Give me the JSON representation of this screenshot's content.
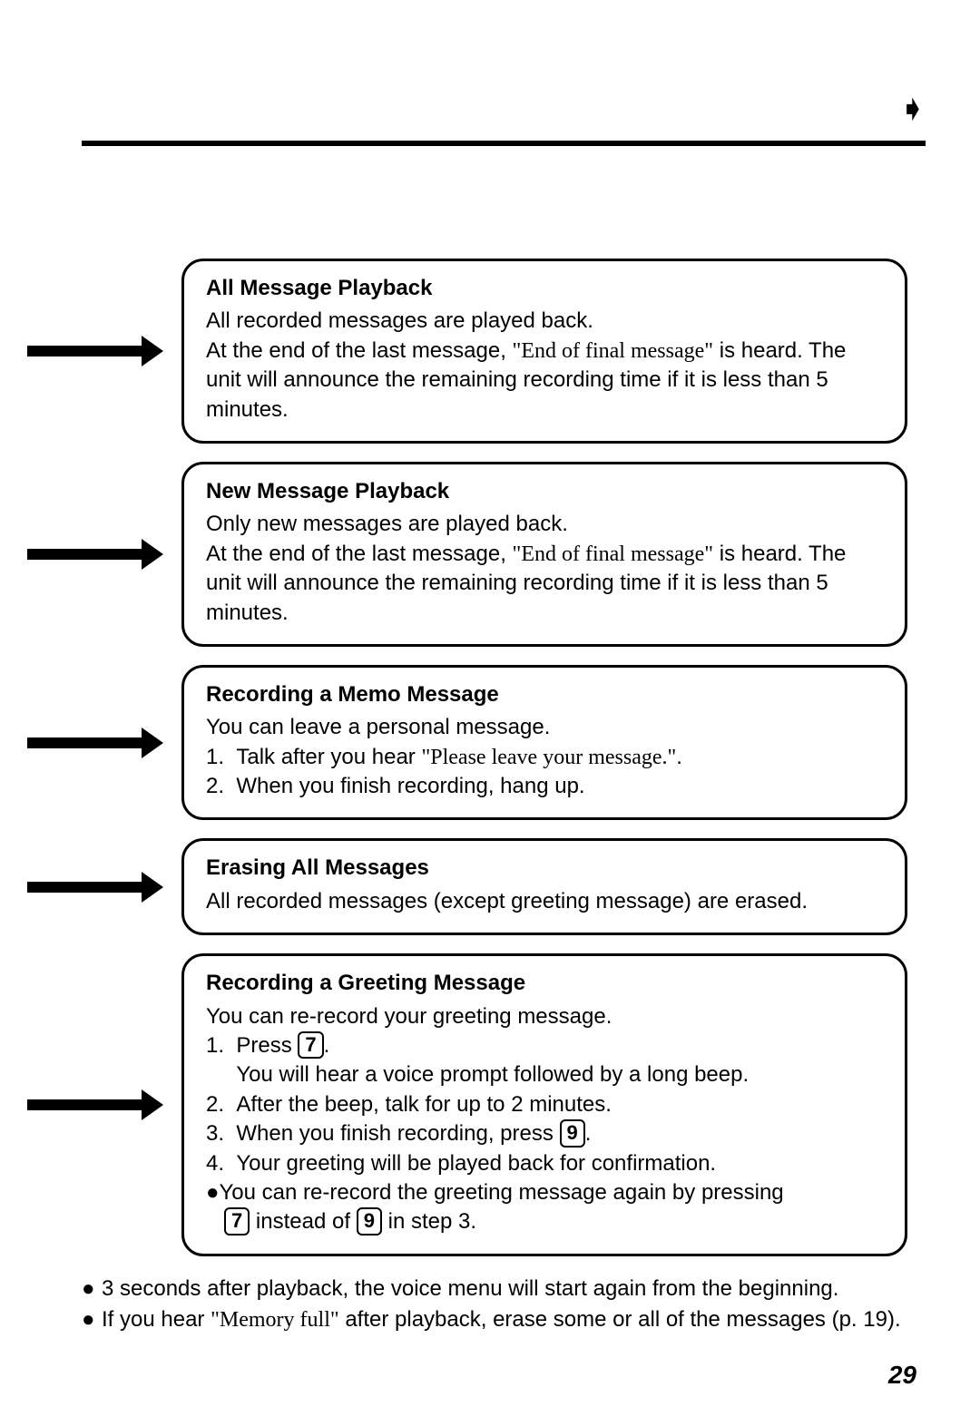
{
  "pageNumber": "29",
  "pageMarker": "➧",
  "boxes": [
    {
      "title": "All Message Playback",
      "body": "All recorded messages are played back.<br>At the end of the last message, <span class=\"quote\">\"End of final message\"</span> is heard. The unit will announce the remaining recording time if it is less than 5 minutes."
    },
    {
      "title": "New Message Playback",
      "body": "Only new messages are played back.<br>At the end of the last message, <span class=\"quote\">\"End of final message\"</span> is heard. The unit will announce the remaining recording time if it is less than 5 minutes."
    },
    {
      "title": "Recording a Memo Message",
      "body": "You can leave a personal message.<br>1.&nbsp;&nbsp;Talk after you hear <span class=\"quote\">\"Please leave your message.\"</span>.<br>2.&nbsp;&nbsp;When you finish recording, hang up."
    },
    {
      "title": "Erasing All Messages",
      "body": "All recorded messages (except greeting message) are erased."
    },
    {
      "title": "Recording a Greeting Message",
      "body": "You can re-record your greeting message.<br>1.&nbsp;&nbsp;Press <span class=\"keycap\">7</span>.<br>&nbsp;&nbsp;&nbsp;&nbsp;&nbsp;You will hear a voice prompt followed by a long beep.<br>2.&nbsp;&nbsp;After the beep, talk for up to 2 minutes.<br>3.&nbsp;&nbsp;When you finish recording, press <span class=\"keycap\">9</span>.<br>4.&nbsp;&nbsp;Your greeting will be played back for confirmation.<br>●You can re-record the greeting message again by pressing<br>&nbsp;&nbsp;&nbsp;<span class=\"keycap\">7</span> instead of <span class=\"keycap\">9</span> in step 3."
    }
  ],
  "footerBullets": [
    "3 seconds after playback, the voice menu will start again from the beginning.",
    "If you hear <span class=\"quote\">\"Memory full\"</span> after playback, erase some or all of the messages (p. 19)."
  ]
}
